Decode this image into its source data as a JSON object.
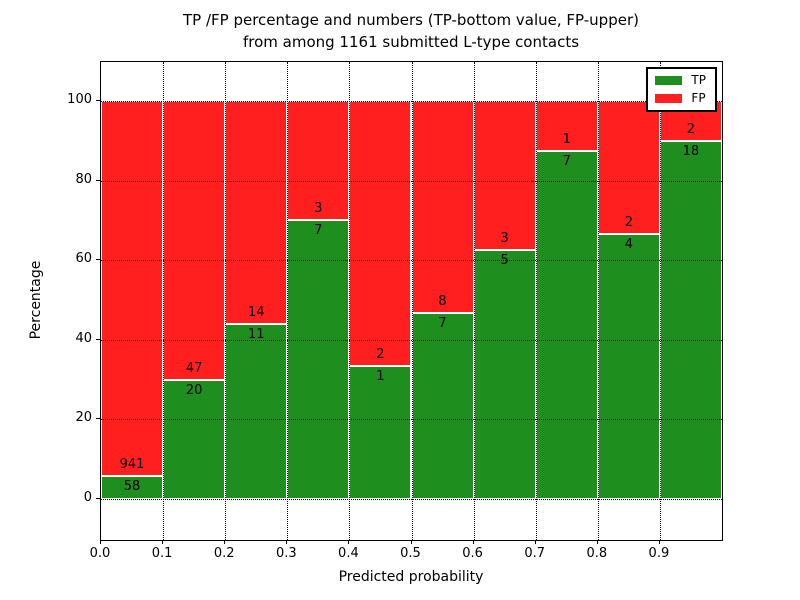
{
  "title": {
    "line1": "TP /FP percentage and numbers (TP-bottom value, FP-upper)",
    "line2": "from among 1161 submitted L-type contacts"
  },
  "axes": {
    "xlabel": "Predicted probability",
    "ylabel": "Percentage",
    "x_tick_labels": [
      "0.0",
      "0.1",
      "0.2",
      "0.3",
      "0.4",
      "0.5",
      "0.6",
      "0.7",
      "0.8",
      "0.9"
    ],
    "y_tick_labels": [
      "0",
      "20",
      "40",
      "60",
      "80",
      "100"
    ],
    "y_tick_values": [
      0,
      20,
      40,
      60,
      80,
      100
    ],
    "xlim": [
      0.0,
      1.0
    ],
    "ylim": [
      -10,
      110
    ],
    "grid": "dotted"
  },
  "legend": {
    "position": "upper right",
    "entries": [
      {
        "label": "TP",
        "color": "#1e8e1e"
      },
      {
        "label": "FP",
        "color": "#ff1f1f"
      }
    ]
  },
  "chart_data": {
    "type": "bar",
    "stacked": true,
    "normalized_to_100_percent": true,
    "title": "TP /FP percentage and numbers (TP-bottom value, FP-upper) from among 1161 submitted L-type contacts",
    "xlabel": "Predicted probability",
    "ylabel": "Percentage",
    "total_contacts": 1161,
    "bin_width": 0.1,
    "bin_starts": [
      0.0,
      0.1,
      0.2,
      0.3,
      0.4,
      0.5,
      0.6,
      0.7,
      0.8,
      0.9
    ],
    "categories": [
      "0.0-0.1",
      "0.1-0.2",
      "0.2-0.3",
      "0.3-0.4",
      "0.4-0.5",
      "0.5-0.6",
      "0.6-0.7",
      "0.7-0.8",
      "0.8-0.9",
      "0.9-1.0"
    ],
    "series": [
      {
        "name": "TP",
        "color": "#1e8e1e",
        "counts": [
          58,
          20,
          11,
          7,
          1,
          7,
          5,
          7,
          4,
          18
        ],
        "percent": [
          5.81,
          29.85,
          44.0,
          70.0,
          33.33,
          46.67,
          62.5,
          87.5,
          66.67,
          90.0
        ]
      },
      {
        "name": "FP",
        "color": "#ff1f1f",
        "counts": [
          941,
          47,
          14,
          3,
          2,
          8,
          3,
          1,
          2,
          2
        ],
        "percent": [
          94.19,
          70.15,
          56.0,
          30.0,
          66.67,
          53.33,
          37.5,
          12.5,
          33.33,
          10.0
        ]
      }
    ],
    "ylim": [
      -10,
      110
    ],
    "legend_position": "upper right"
  }
}
